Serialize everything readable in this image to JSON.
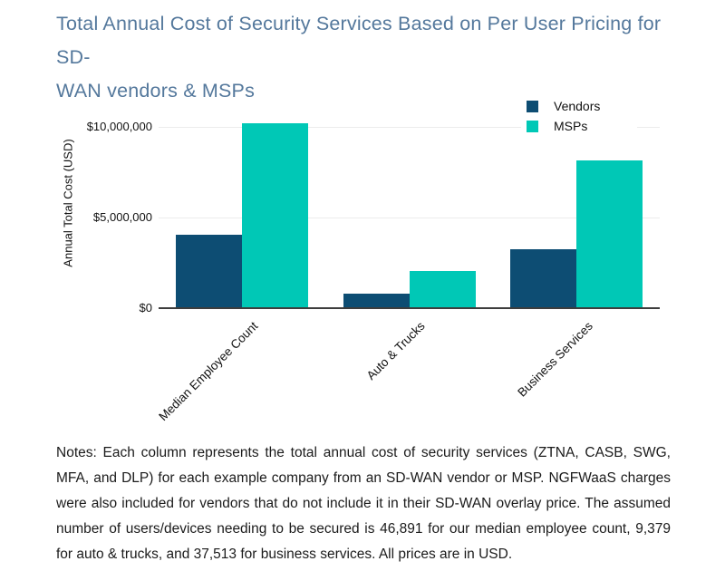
{
  "title": {
    "line1": "Total Annual Cost of Security Services Based on Per User Pricing for SD-",
    "line2": "WAN vendors & MSPs",
    "color": "#54789c"
  },
  "chart_data": {
    "type": "bar",
    "title": "Total Annual Cost of Security Services Based on Per User Pricing for SD-WAN vendors & MSPs",
    "categories": [
      "Median Employee Count",
      "Auto & Trucks",
      "Business Services"
    ],
    "series": [
      {
        "name": "Vendors",
        "color": "#0d4d73",
        "values": [
          4030000,
          810000,
          3230000
        ]
      },
      {
        "name": "MSPs",
        "color": "#00c8b6",
        "values": [
          10190000,
          2040000,
          8160000
        ]
      }
    ],
    "xlabel": "",
    "ylabel": "Annual Total Cost (USD)",
    "yticks": [
      {
        "label": "$0",
        "value": 0
      },
      {
        "label": "$5,000,000",
        "value": 5000000
      },
      {
        "label": "$10,000,000",
        "value": 10000000
      }
    ],
    "ylim": [
      0,
      10000000
    ],
    "grid": true,
    "legend_position": "top-right"
  },
  "notes": {
    "text": "Notes: Each column represents the total annual cost of security services (ZTNA, CASB, SWG, MFA, and DLP) for each example company from an SD-WAN vendor or MSP. NGFWaaS charges were also included for vendors that do not include it in their SD-WAN overlay price. The assumed number of users/devices needing to be secured is 46,891 for our median employee count, 9,379 for auto & trucks, and 37,513 for business services. All prices are in USD."
  }
}
